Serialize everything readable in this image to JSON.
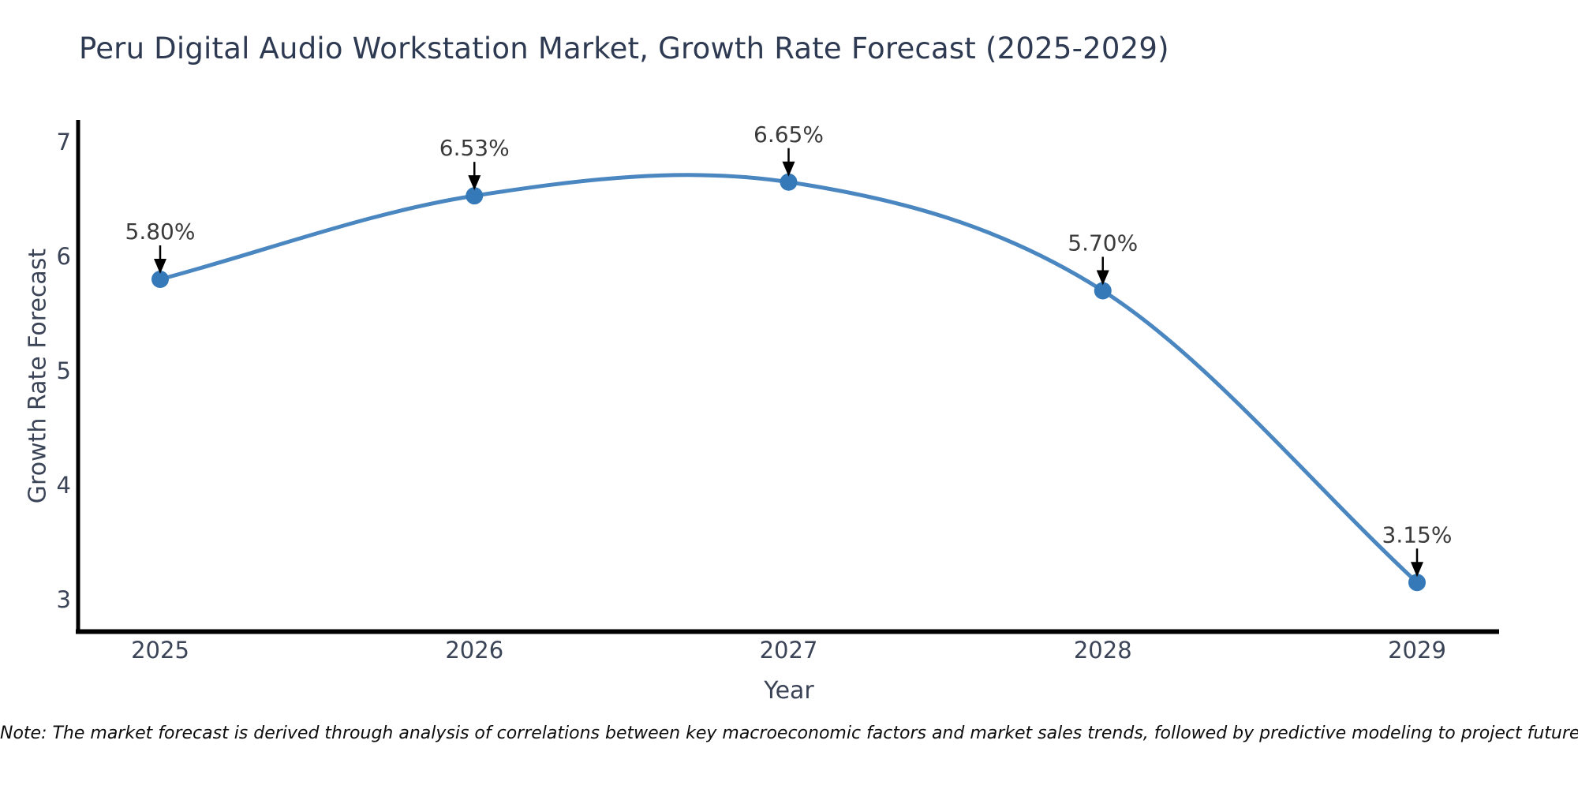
{
  "chart_data": {
    "type": "line",
    "title": "Peru Digital Audio Workstation Market, Growth Rate Forecast (2025-2029)",
    "xlabel": "Year",
    "ylabel": "Growth Rate Forecast",
    "categories": [
      "2025",
      "2026",
      "2027",
      "2028",
      "2029"
    ],
    "values": [
      5.8,
      6.53,
      6.65,
      5.7,
      3.15
    ],
    "point_labels": [
      "5.80%",
      "6.53%",
      "6.65%",
      "5.70%",
      "3.15%"
    ],
    "yticks": [
      3,
      4,
      5,
      6,
      7
    ],
    "ylim": [
      2.7,
      7.19
    ],
    "grid": false,
    "legend": "none",
    "line_shape": "spline",
    "colors": {
      "line": "#4a86c0",
      "marker": "#3579b8",
      "axis": "#000000",
      "tick_text": "#3b4457",
      "annotation_text": "#3a3a3a",
      "annotation_arrow": "#000000",
      "title_text": "#2e3a52",
      "background": "#ffffff"
    }
  },
  "footer": {
    "note": "Note: The market forecast is derived through analysis of correlations between key macroeconomic factors and market sales trends, followed by predictive modeling to project future sales."
  }
}
